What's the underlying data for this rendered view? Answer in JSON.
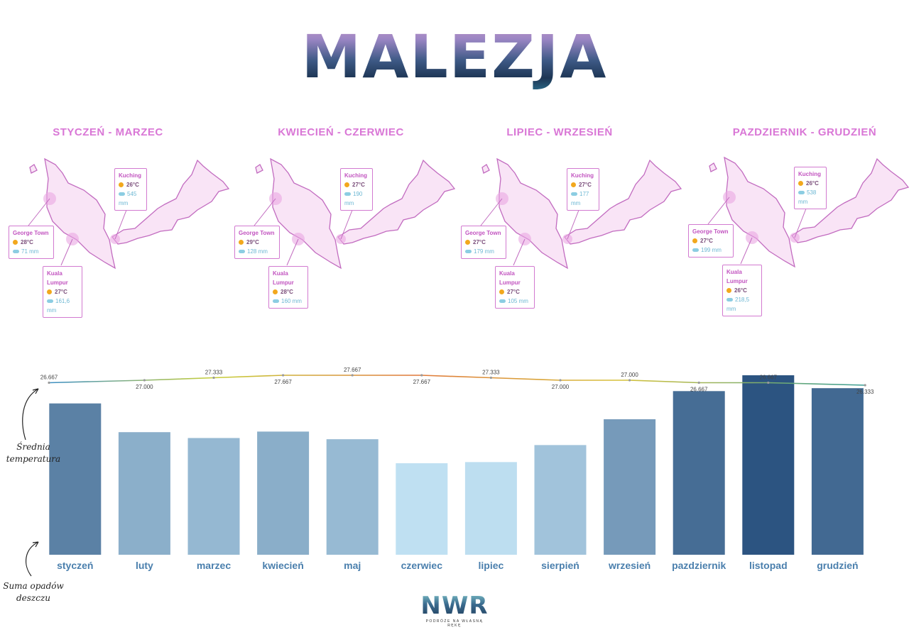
{
  "title": "MALEZJA",
  "seasons": [
    {
      "label": "STYCZEŃ - MARZEC",
      "george_town": {
        "name": "George Town",
        "temp": "28°C",
        "rain": "71 mm"
      },
      "kuala_lumpur": {
        "name": "Kuala Lumpur",
        "temp": "27°C",
        "rain": "161,6 mm"
      },
      "kuching": {
        "name": "Kuching",
        "temp": "26°C",
        "rain": "545 mm"
      }
    },
    {
      "label": "KWIECIEŃ - CZERWIEC",
      "george_town": {
        "name": "George Town",
        "temp": "29°C",
        "rain": "128 mm"
      },
      "kuala_lumpur": {
        "name": "Kuala Lumpur",
        "temp": "28°C",
        "rain": "160 mm"
      },
      "kuching": {
        "name": "Kuching",
        "temp": "27°C",
        "rain": "190 mm"
      }
    },
    {
      "label": "LIPIEC - WRZESIEŃ",
      "george_town": {
        "name": "George Town",
        "temp": "27°C",
        "rain": "179 mm"
      },
      "kuala_lumpur": {
        "name": "Kuala Lumpur",
        "temp": "27°C",
        "rain": "105 mm"
      },
      "kuching": {
        "name": "Kuching",
        "temp": "27°C",
        "rain": "177 mm"
      }
    },
    {
      "label": "PAZDZIERNIK - GRUDZIEŃ",
      "george_town": {
        "name": "George Town",
        "temp": "27°C",
        "rain": "199 mm"
      },
      "kuala_lumpur": {
        "name": "Kuala Lumpur",
        "temp": "26°C",
        "rain": "218,5 mm"
      },
      "kuching": {
        "name": "Kuching",
        "temp": "26°C",
        "rain": "538 mm"
      }
    }
  ],
  "side_labels": {
    "temperature": "Średnia temperatura",
    "rain": "Suma opadów deszczu"
  },
  "logo": {
    "main": "NWR",
    "sub": "PODRÓŻE NA WŁASNĄ RĘKĘ"
  },
  "colors": {
    "season_title": "#d977d6",
    "map_fill": "#f9e4f6",
    "map_stroke": "#c26cc0",
    "bar_light": "#bfe0f2",
    "bar_dark": "#2c5481",
    "month_label": "#4a7fad"
  },
  "chart_data": {
    "type": "bar",
    "categories": [
      "styczeń",
      "luty",
      "marzec",
      "kwiecień",
      "maj",
      "czerwiec",
      "lipiec",
      "sierpień",
      "wrzesień",
      "pazdziernik",
      "listopad",
      "grudzień"
    ],
    "series": [
      {
        "type": "bar",
        "values": [
          258,
          209,
          199,
          210,
          197,
          156,
          158,
          187,
          231,
          279,
          306,
          284
        ]
      },
      {
        "type": "line",
        "values": [
          26.667,
          27.0,
          27.333,
          27.667,
          27.667,
          27.667,
          27.333,
          27.0,
          27.0,
          26.667,
          26.667,
          26.333
        ],
        "labels": [
          "26.667",
          "27.000",
          "27.333",
          "27.667",
          "27.667",
          "27.667",
          "27.333",
          "27.000",
          "27.000",
          "26.667",
          "26.667",
          "26.333"
        ]
      }
    ],
    "ylim": [
      0,
      306
    ],
    "grid": false,
    "legend": "none"
  }
}
